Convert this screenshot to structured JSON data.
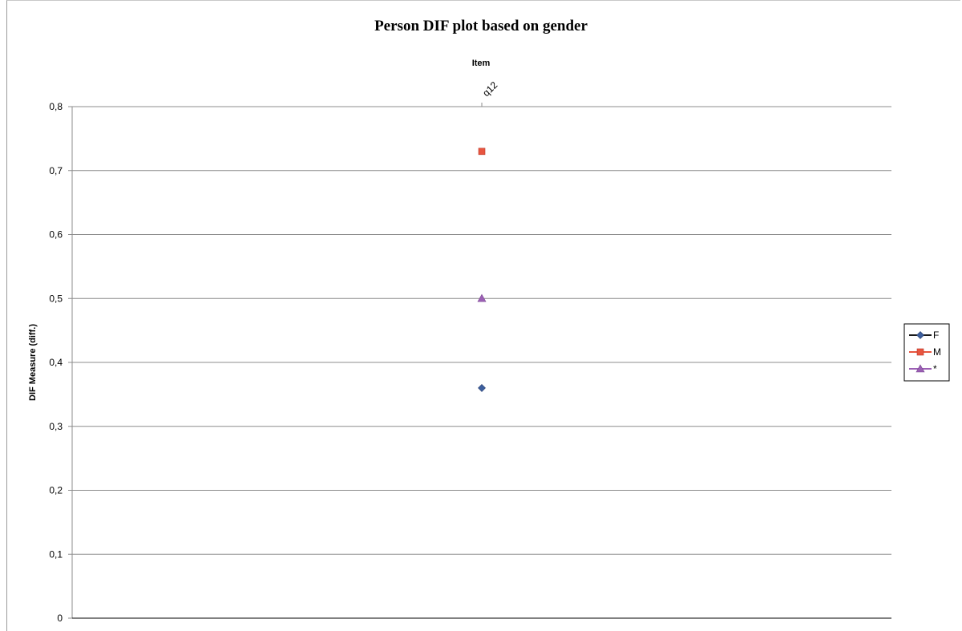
{
  "chart_data": {
    "type": "scatter",
    "title": "Person DIF plot based on gender",
    "xlabel": "Item",
    "ylabel": "DIF Measure (diff.)",
    "categories": [
      "q12"
    ],
    "ylim": [
      0,
      0.8
    ],
    "yticks": [
      0,
      0.1,
      0.2,
      0.3,
      0.4,
      0.5,
      0.6,
      0.7,
      0.8
    ],
    "ytick_labels": [
      "0",
      "0,1",
      "0,2",
      "0,3",
      "0,4",
      "0,5",
      "0,6",
      "0,7",
      "0,8"
    ],
    "grid": true,
    "legend_position": "right",
    "series": [
      {
        "name": "F",
        "values": [
          0.36
        ],
        "color": "#3d5f9e",
        "marker": "diamond"
      },
      {
        "name": "M",
        "values": [
          0.73
        ],
        "color": "#e8553f",
        "marker": "square"
      },
      {
        "name": "*",
        "values": [
          0.5
        ],
        "color": "#9b5fb4",
        "marker": "triangle"
      }
    ]
  }
}
